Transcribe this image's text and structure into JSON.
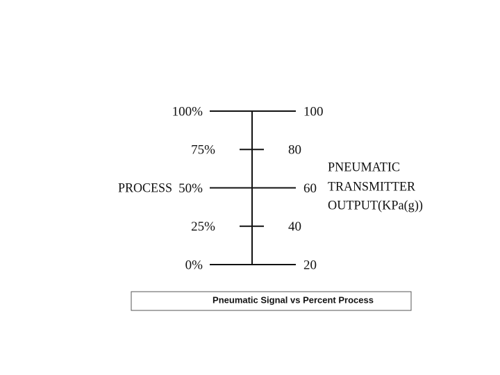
{
  "levels": [
    {
      "percent": "100%",
      "output": "100"
    },
    {
      "percent": "75%",
      "output": "80"
    },
    {
      "percent": "50%",
      "output": "60"
    },
    {
      "percent": "25%",
      "output": "40"
    },
    {
      "percent": "0%",
      "output": "20"
    }
  ],
  "process_label": "PROCESS",
  "output_label": [
    "PNEUMATIC",
    "TRANSMITTER",
    "OUTPUT(KPa(g))"
  ],
  "caption": "Pneumatic Signal vs Percent Process"
}
